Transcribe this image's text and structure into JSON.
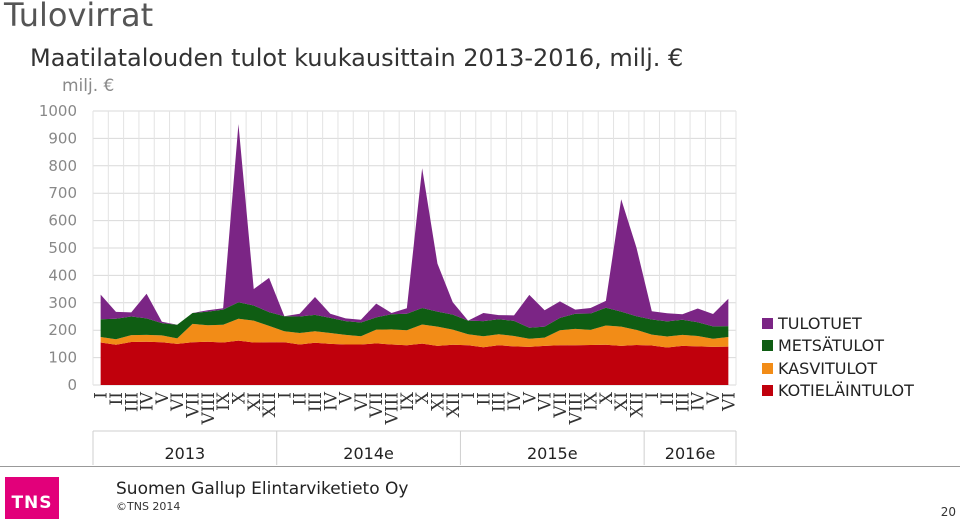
{
  "page": {
    "title": "Tulovirrat",
    "chart_title": "Maatilatalouden tulot kuukausittain 2013-2016, milj. €",
    "unit": "milj. €",
    "company": "Suomen Gallup Elintarviketieto Oy",
    "copyright": "©TNS 2014",
    "logo_text": "TNS",
    "page_number": "20"
  },
  "colors": {
    "TULOTUET": "#7b2585",
    "METSÄTULOT": "#0f5d13",
    "KASVITULOT": "#f28c17",
    "KOTIELÄINTULOT": "#c0000c",
    "logo": "#e2007a"
  },
  "chart_data": {
    "type": "area",
    "stacked": true,
    "title": "Maatilatalouden tulot kuukausittain 2013-2016, milj. €",
    "ylabel": "milj. €",
    "xlabel": "",
    "ylim": [
      0,
      1000
    ],
    "yticks": [
      "0",
      "100",
      "200",
      "300",
      "400",
      "500",
      "600",
      "700",
      "800",
      "900",
      "1000"
    ],
    "grid": true,
    "legend_position": "right",
    "x": [
      "I",
      "II",
      "III",
      "IV",
      "V",
      "VI",
      "VII",
      "VIII",
      "IX",
      "X",
      "XI",
      "XII",
      "I",
      "II",
      "III",
      "IV",
      "V",
      "VI",
      "VII",
      "VIII",
      "IX",
      "X",
      "XI",
      "XII",
      "I",
      "II",
      "III",
      "IV",
      "V",
      "VI",
      "VII",
      "VIII",
      "IX",
      "X",
      "XI",
      "XII",
      "I",
      "II",
      "III",
      "IV",
      "V",
      "VI"
    ],
    "year_groups": [
      {
        "label": "2013",
        "start": 0,
        "end": 11
      },
      {
        "label": "2014e",
        "start": 12,
        "end": 23
      },
      {
        "label": "2015e",
        "start": 24,
        "end": 35
      },
      {
        "label": "2016e",
        "start": 36,
        "end": 41
      }
    ],
    "series": [
      {
        "name": "KOTIELÄINTULOT",
        "values": [
          155,
          147,
          157,
          158,
          156,
          150,
          156,
          158,
          155,
          162,
          155,
          156,
          156,
          148,
          154,
          150,
          148,
          148,
          152,
          148,
          145,
          151,
          143,
          147,
          145,
          138,
          145,
          141,
          139,
          143,
          145,
          145,
          146,
          147,
          143,
          146,
          144,
          137,
          143,
          141,
          139,
          140
        ]
      },
      {
        "name": "KASVITULOT",
        "values": [
          20,
          20,
          25,
          25,
          25,
          20,
          67,
          60,
          65,
          80,
          80,
          60,
          40,
          42,
          42,
          40,
          35,
          30,
          50,
          55,
          55,
          70,
          70,
          55,
          40,
          40,
          40,
          38,
          30,
          30,
          55,
          60,
          55,
          70,
          70,
          55,
          40,
          40,
          40,
          38,
          30,
          35
        ]
      },
      {
        "name": "METSÄTULOT",
        "values": [
          65,
          75,
          68,
          60,
          45,
          50,
          40,
          50,
          55,
          60,
          55,
          50,
          55,
          60,
          60,
          55,
          50,
          50,
          45,
          55,
          60,
          60,
          55,
          55,
          50,
          55,
          55,
          55,
          40,
          40,
          45,
          55,
          60,
          65,
          55,
          50,
          55,
          55,
          55,
          50,
          45,
          40
        ]
      },
      {
        "name": "TULOTUET",
        "values": [
          90,
          25,
          15,
          90,
          5,
          0,
          0,
          5,
          5,
          650,
          60,
          125,
          0,
          10,
          65,
          15,
          10,
          10,
          50,
          5,
          20,
          510,
          175,
          45,
          0,
          30,
          15,
          20,
          120,
          60,
          60,
          15,
          20,
          25,
          410,
          250,
          30,
          30,
          20,
          50,
          45,
          100
        ]
      }
    ]
  }
}
